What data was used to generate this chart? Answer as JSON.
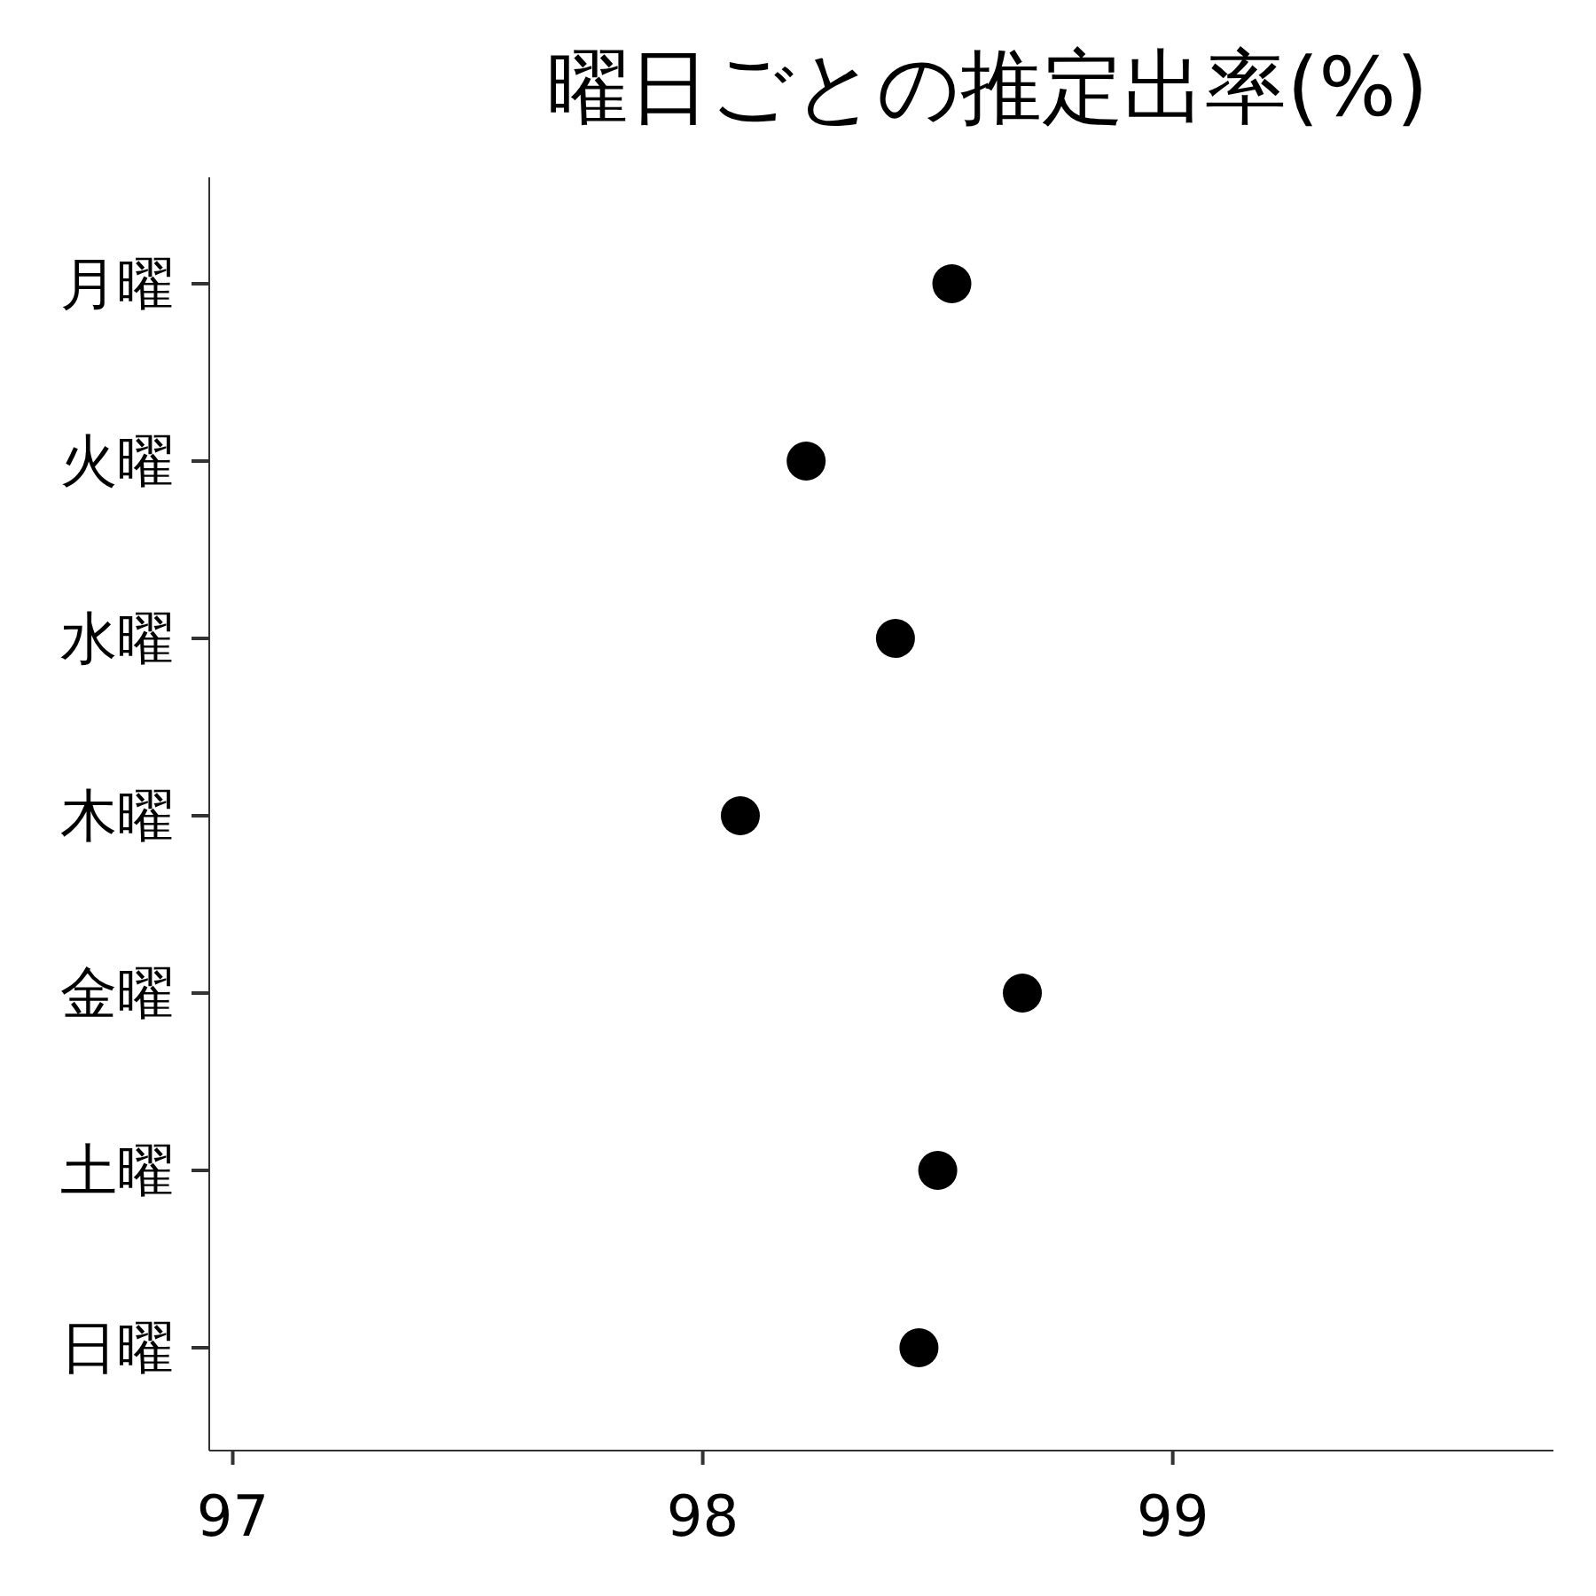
{
  "chart_data": {
    "type": "scatter",
    "title": "曜日ごとの推定出率(%)",
    "orientation": "horizontal",
    "categories": [
      "月曜",
      "火曜",
      "水曜",
      "木曜",
      "金曜",
      "土曜",
      "日曜"
    ],
    "values": [
      98.53,
      98.22,
      98.41,
      98.08,
      98.68,
      98.5,
      98.46
    ],
    "color": "#000000",
    "marker": "circle",
    "xlim": [
      96.95,
      99.81
    ],
    "xticks": [
      97,
      98,
      99
    ],
    "grid": false
  }
}
